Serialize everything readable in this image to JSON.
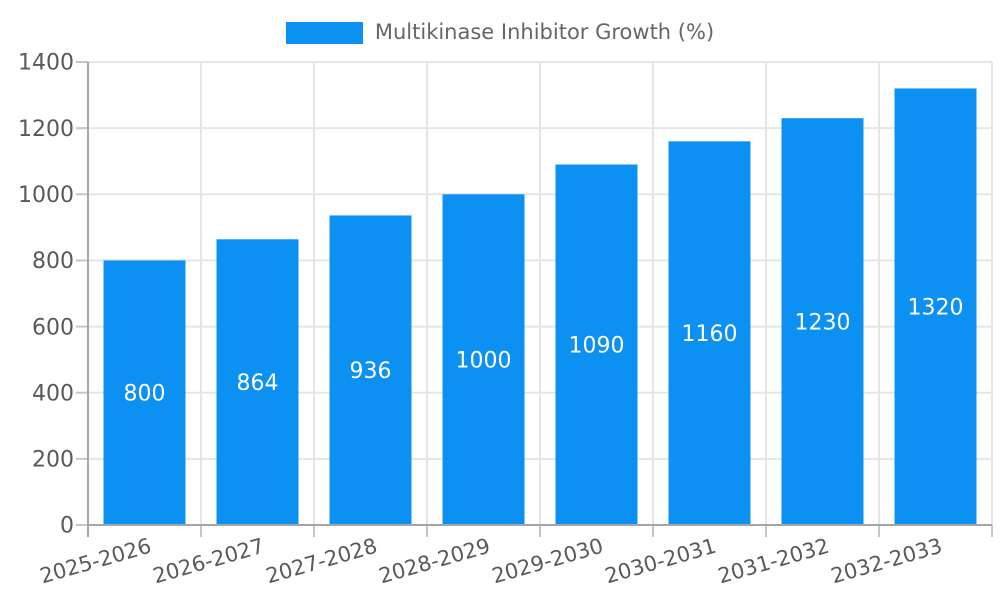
{
  "legend": {
    "label": "Multikinase Inhibitor Growth (%)"
  },
  "colors": {
    "bar": "#0c90f2",
    "grid": "#e5e5e5",
    "axis": "#a6a6a6",
    "tick": "#c6c6c6",
    "tick_label": "#595959",
    "value_label": "#ffffff",
    "legend_text": "#666666",
    "background": "#ffffff"
  },
  "chart_data": {
    "type": "bar",
    "title": "Multikinase Inhibitor Growth (%)",
    "series_name": "Multikinase Inhibitor Growth (%)",
    "categories": [
      "2025-2026",
      "2026-2027",
      "2027-2028",
      "2028-2029",
      "2029-2030",
      "2030-2031",
      "2031-2032",
      "2032-2033"
    ],
    "values": [
      800,
      864,
      936,
      1000,
      1090,
      1160,
      1230,
      1320
    ],
    "xlabel": "",
    "ylabel": "",
    "ylim": [
      0,
      1400
    ],
    "yticks": [
      0,
      200,
      400,
      600,
      800,
      1000,
      1200,
      1400
    ],
    "grid": true,
    "legend_position": "top-center",
    "value_label_position": "inside-center",
    "x_tick_label_rotation_deg": -16
  }
}
